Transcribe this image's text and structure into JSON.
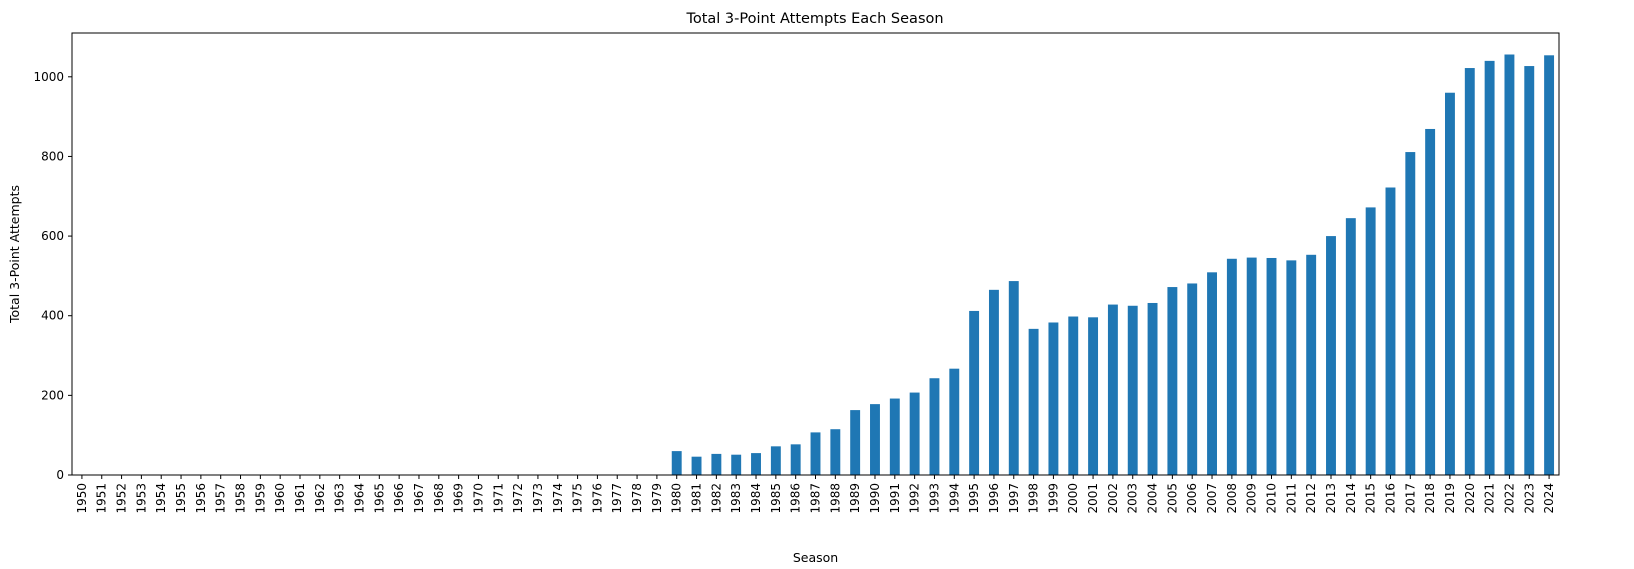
{
  "chart_data": {
    "type": "bar",
    "title": "Total 3-Point Attempts Each Season",
    "xlabel": "Season",
    "ylabel": "Total 3-Point Attempts",
    "ylim": [
      0,
      1110
    ],
    "yticks": [
      0,
      200,
      400,
      600,
      800,
      1000
    ],
    "grid": false,
    "color": "#1f77b4",
    "categories": [
      "1950",
      "1951",
      "1952",
      "1953",
      "1954",
      "1955",
      "1956",
      "1957",
      "1958",
      "1959",
      "1960",
      "1961",
      "1962",
      "1963",
      "1964",
      "1965",
      "1966",
      "1967",
      "1968",
      "1969",
      "1970",
      "1971",
      "1972",
      "1973",
      "1974",
      "1975",
      "1976",
      "1977",
      "1978",
      "1979",
      "1980",
      "1981",
      "1982",
      "1983",
      "1984",
      "1985",
      "1986",
      "1987",
      "1988",
      "1989",
      "1990",
      "1991",
      "1992",
      "1993",
      "1994",
      "1995",
      "1996",
      "1997",
      "1998",
      "1999",
      "2000",
      "2001",
      "2002",
      "2003",
      "2004",
      "2005",
      "2006",
      "2007",
      "2008",
      "2009",
      "2010",
      "2011",
      "2012",
      "2013",
      "2014",
      "2015",
      "2016",
      "2017",
      "2018",
      "2019",
      "2020",
      "2021",
      "2022",
      "2023",
      "2024"
    ],
    "values": [
      0,
      0,
      0,
      0,
      0,
      0,
      0,
      0,
      0,
      0,
      0,
      0,
      0,
      0,
      0,
      0,
      0,
      0,
      0,
      0,
      0,
      0,
      0,
      0,
      0,
      0,
      0,
      0,
      0,
      0,
      60,
      46,
      53,
      51,
      55,
      72,
      77,
      107,
      115,
      163,
      178,
      192,
      207,
      243,
      267,
      412,
      465,
      487,
      367,
      383,
      398,
      396,
      428,
      425,
      432,
      472,
      481,
      509,
      543,
      546,
      545,
      539,
      553,
      600,
      645,
      672,
      722,
      811,
      869,
      960,
      1022,
      1040,
      1056,
      1027,
      1054
    ]
  }
}
